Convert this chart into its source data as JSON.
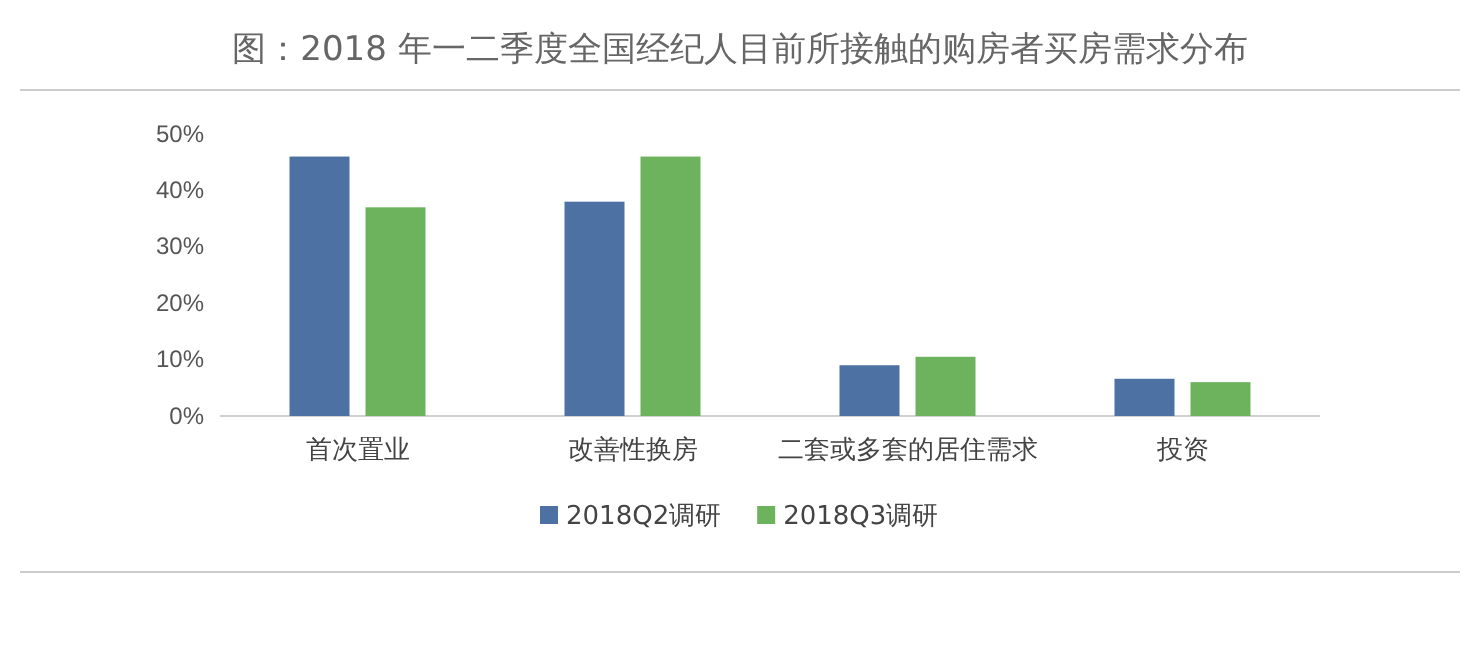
{
  "chart_data": {
    "type": "bar",
    "title": "图：2018 年一二季度全国经纪人目前所接触的购房者买房需求分布",
    "categories": [
      "首次置业",
      "改善性换房",
      "二套或多套的居住需求",
      "投资"
    ],
    "series": [
      {
        "name": "2018Q2调研",
        "color": "#4e71a4",
        "values": [
          46,
          38,
          9,
          6.6
        ]
      },
      {
        "name": "2018Q3调研",
        "color": "#6db25d",
        "values": [
          37,
          46,
          10.5,
          6
        ]
      }
    ],
    "ylim": [
      0,
      50
    ],
    "yticks": [
      {
        "value": 0,
        "label": "0%"
      },
      {
        "value": 10,
        "label": "10%"
      },
      {
        "value": 20,
        "label": "20%"
      },
      {
        "value": 30,
        "label": "30%"
      },
      {
        "value": 40,
        "label": "40%"
      },
      {
        "value": 50,
        "label": "50%"
      }
    ],
    "grid": false,
    "legend": "bottom"
  }
}
